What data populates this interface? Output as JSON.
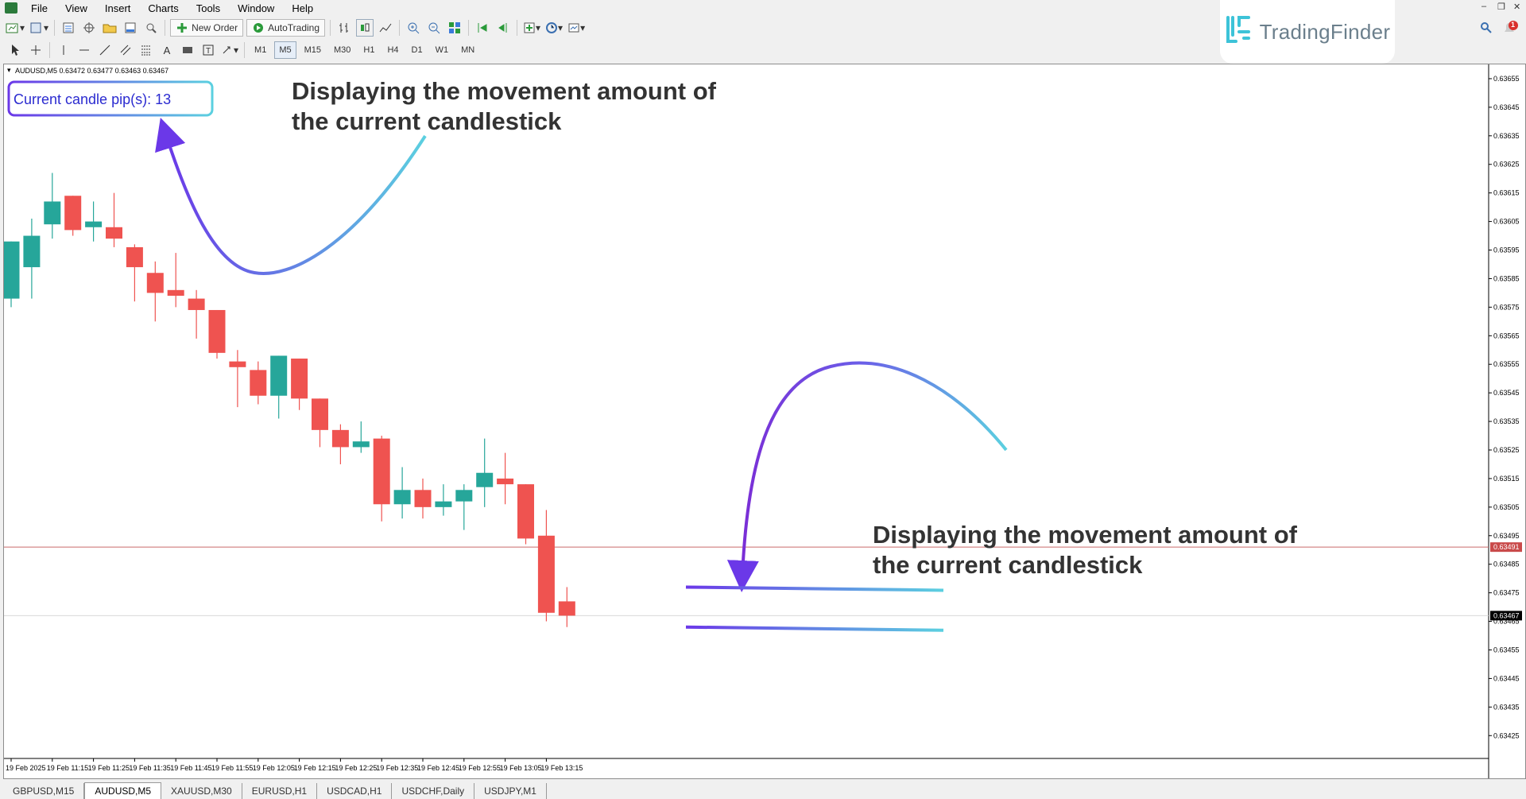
{
  "menu": [
    "File",
    "View",
    "Insert",
    "Charts",
    "Tools",
    "Window",
    "Help"
  ],
  "toolbar": {
    "new_order": "New Order",
    "autotrading": "AutoTrading",
    "timeframes": [
      "M1",
      "M5",
      "M15",
      "M30",
      "H1",
      "H4",
      "D1",
      "W1",
      "MN"
    ]
  },
  "brand": {
    "name": "TradingFinder"
  },
  "notification_count": "1",
  "chart": {
    "header": "AUDUSD,M5  0.63472 0.63477 0.63463 0.63467",
    "indicator_box": "Current candle pip(s): 13",
    "annotation_1_line1": "Displaying the movement amount of",
    "annotation_1_line2": "the current candlestick",
    "annotation_2_line1": "Displaying the movement amount of",
    "annotation_2_line2": "the current candlestick",
    "bid_label": "0.63491",
    "last_label": "0.63467"
  },
  "tabs": [
    "GBPUSD,M15",
    "AUDUSD,M5",
    "XAUUSD,M30",
    "EURUSD,H1",
    "USDCAD,H1",
    "USDCHF,Daily",
    "USDJPY,M1"
  ],
  "active_tab": "AUDUSD,M5",
  "chart_data": {
    "type": "candlestick",
    "symbol": "AUDUSD",
    "timeframe": "M5",
    "ylim": [
      0.63417,
      0.6366
    ],
    "yticks": [
      "0.63655",
      "0.63645",
      "0.63635",
      "0.63625",
      "0.63615",
      "0.63605",
      "0.63595",
      "0.63585",
      "0.63575",
      "0.63565",
      "0.63555",
      "0.63545",
      "0.63535",
      "0.63525",
      "0.63515",
      "0.63505",
      "0.63495",
      "0.63485",
      "0.63475",
      "0.63465",
      "0.63455",
      "0.63445",
      "0.63435",
      "0.63425"
    ],
    "xticks": [
      "19 Feb 2025",
      "19 Feb 11:15",
      "19 Feb 11:25",
      "19 Feb 11:35",
      "19 Feb 11:45",
      "19 Feb 11:55",
      "19 Feb 12:05",
      "19 Feb 12:15",
      "19 Feb 12:25",
      "19 Feb 12:35",
      "19 Feb 12:45",
      "19 Feb 12:55",
      "19 Feb 13:05",
      "19 Feb 13:15"
    ],
    "colors": {
      "bull": "#26a69a",
      "bear": "#ef5350",
      "bid_line": "#c96a6a",
      "arrow_start": "#6b38e8",
      "arrow_end": "#5bd0e0"
    },
    "candles": [
      {
        "o": 0.63578,
        "h": 0.63598,
        "l": 0.63575,
        "c": 0.63598
      },
      {
        "o": 0.63589,
        "h": 0.63606,
        "l": 0.63578,
        "c": 0.636
      },
      {
        "o": 0.63604,
        "h": 0.63622,
        "l": 0.63599,
        "c": 0.63612
      },
      {
        "o": 0.63614,
        "h": 0.63614,
        "l": 0.636,
        "c": 0.63602
      },
      {
        "o": 0.63603,
        "h": 0.63612,
        "l": 0.63598,
        "c": 0.63605
      },
      {
        "o": 0.63603,
        "h": 0.63615,
        "l": 0.63596,
        "c": 0.63599
      },
      {
        "o": 0.63596,
        "h": 0.63597,
        "l": 0.63577,
        "c": 0.63589
      },
      {
        "o": 0.63587,
        "h": 0.63591,
        "l": 0.6357,
        "c": 0.6358
      },
      {
        "o": 0.63581,
        "h": 0.63594,
        "l": 0.63575,
        "c": 0.63579
      },
      {
        "o": 0.63578,
        "h": 0.63581,
        "l": 0.63564,
        "c": 0.63574
      },
      {
        "o": 0.63574,
        "h": 0.63574,
        "l": 0.63557,
        "c": 0.63559
      },
      {
        "o": 0.63556,
        "h": 0.6356,
        "l": 0.6354,
        "c": 0.63554
      },
      {
        "o": 0.63553,
        "h": 0.63556,
        "l": 0.63541,
        "c": 0.63544
      },
      {
        "o": 0.63544,
        "h": 0.63558,
        "l": 0.63536,
        "c": 0.63558
      },
      {
        "o": 0.63557,
        "h": 0.63557,
        "l": 0.63539,
        "c": 0.63543
      },
      {
        "o": 0.63543,
        "h": 0.63543,
        "l": 0.63526,
        "c": 0.63532
      },
      {
        "o": 0.63532,
        "h": 0.63534,
        "l": 0.6352,
        "c": 0.63526
      },
      {
        "o": 0.63526,
        "h": 0.63535,
        "l": 0.63524,
        "c": 0.63528
      },
      {
        "o": 0.63529,
        "h": 0.6353,
        "l": 0.635,
        "c": 0.63506
      },
      {
        "o": 0.63506,
        "h": 0.63519,
        "l": 0.63501,
        "c": 0.63511
      },
      {
        "o": 0.63511,
        "h": 0.63515,
        "l": 0.63501,
        "c": 0.63505
      },
      {
        "o": 0.63505,
        "h": 0.63513,
        "l": 0.63502,
        "c": 0.63507
      },
      {
        "o": 0.63507,
        "h": 0.63513,
        "l": 0.63497,
        "c": 0.63511
      },
      {
        "o": 0.63512,
        "h": 0.63529,
        "l": 0.63505,
        "c": 0.63517
      },
      {
        "o": 0.63515,
        "h": 0.63524,
        "l": 0.63506,
        "c": 0.63513
      },
      {
        "o": 0.63513,
        "h": 0.63513,
        "l": 0.63492,
        "c": 0.63494
      },
      {
        "o": 0.63495,
        "h": 0.63504,
        "l": 0.63465,
        "c": 0.63468
      },
      {
        "o": 0.63472,
        "h": 0.63477,
        "l": 0.63463,
        "c": 0.63467
      }
    ],
    "bid": 0.63491,
    "last": 0.63467
  }
}
